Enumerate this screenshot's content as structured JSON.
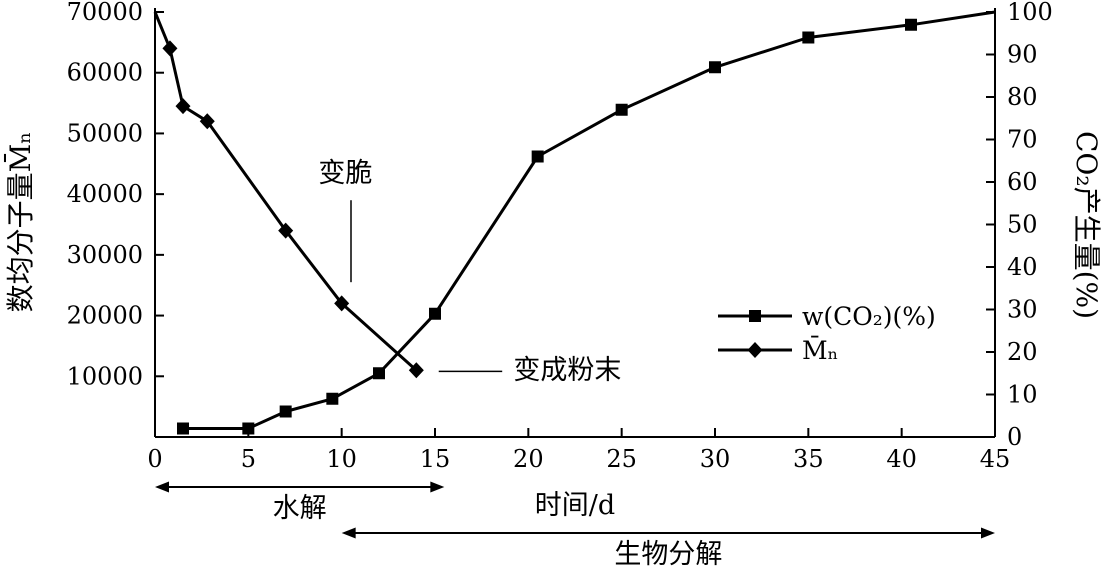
{
  "chart_data": {
    "type": "line",
    "title": "",
    "xlabel": "时间/d",
    "ylabel_left": "数均分子量M̄ₙ",
    "ylabel_right": "CO₂产生量(%)",
    "xlim": [
      0,
      45
    ],
    "ylim_left": [
      0,
      70000
    ],
    "ylim_right": [
      0,
      100
    ],
    "x_ticks": [
      0,
      5,
      10,
      15,
      20,
      25,
      30,
      35,
      40,
      45
    ],
    "y_left_ticks": [
      10000,
      20000,
      30000,
      40000,
      50000,
      60000,
      70000
    ],
    "y_right_ticks": [
      0,
      10,
      20,
      30,
      40,
      50,
      60,
      70,
      80,
      90,
      100
    ],
    "grid": false,
    "line_color": "#000000",
    "series": [
      {
        "name": "w(CO₂)(%)",
        "axis": "right",
        "marker": "square",
        "color": "#000000",
        "points": [
          [
            1.5,
            2
          ],
          [
            5,
            2
          ],
          [
            7,
            6
          ],
          [
            9.5,
            9
          ],
          [
            12,
            15
          ],
          [
            15,
            29
          ],
          [
            20.5,
            66
          ],
          [
            25,
            77
          ],
          [
            30,
            87
          ],
          [
            35,
            94
          ],
          [
            40.5,
            97
          ]
        ],
        "line_extra_end": [
          [
            45,
            100
          ]
        ]
      },
      {
        "name": "M̄ₙ",
        "axis": "left",
        "marker": "diamond",
        "color": "#000000",
        "points": [
          [
            0.8,
            64000
          ],
          [
            1.5,
            54500
          ],
          [
            2.8,
            52000
          ],
          [
            7,
            34000
          ],
          [
            10,
            22000
          ],
          [
            14,
            11000
          ]
        ],
        "line_extra_start": [
          [
            0,
            70000
          ]
        ]
      }
    ],
    "legend": {
      "position": "center-right",
      "entries": [
        {
          "marker": "square",
          "label": "w(CO₂)(%)"
        },
        {
          "marker": "diamond",
          "label": "M̄ₙ"
        }
      ]
    },
    "annotations": [
      {
        "id": "brittle",
        "text": "变脆",
        "axis": "left",
        "text_x": 10.2,
        "text_y": 42000,
        "line": {
          "orient": "vertical",
          "x": 10.5,
          "y_from": 39000,
          "y_to": 25500
        }
      },
      {
        "id": "powder",
        "text": "变成粉末",
        "axis": "left",
        "text_x": 19.2,
        "text_y": 11000,
        "line": {
          "orient": "horizontal",
          "y": 10800,
          "x_from": 15.2,
          "x_to": 18.6
        }
      }
    ],
    "phase_arrows": [
      {
        "label": "水解",
        "x_start": 0,
        "x_end": 15.5
      },
      {
        "label": "生物分解",
        "x_start": 10,
        "x_end": 45
      }
    ]
  },
  "colors": {
    "background": "#ffffff",
    "ink": "#000000"
  }
}
